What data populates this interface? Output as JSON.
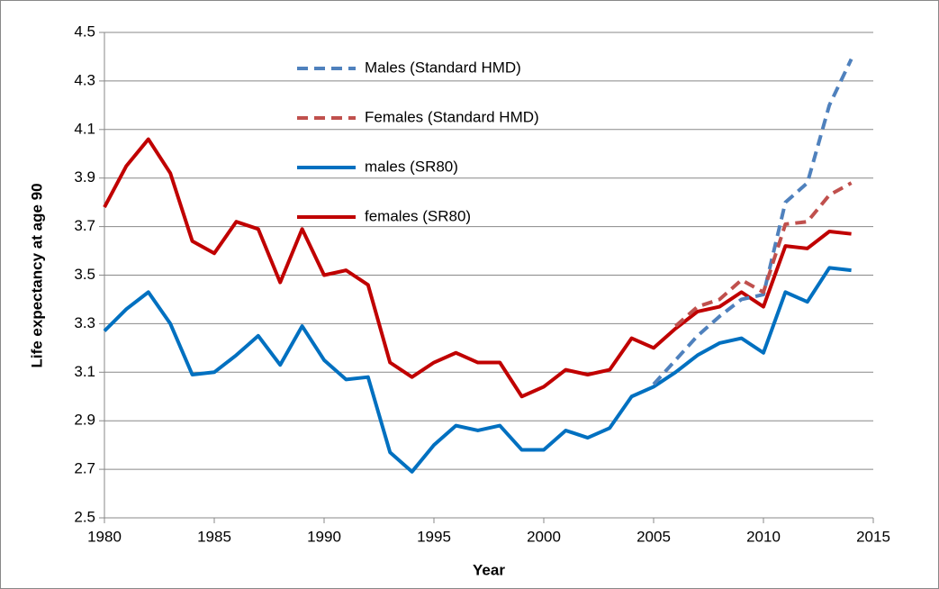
{
  "chart_data": {
    "type": "line",
    "x_label": "Year",
    "y_label": "Life expectancy at age 90",
    "x": [
      1980,
      1981,
      1982,
      1983,
      1984,
      1985,
      1986,
      1987,
      1988,
      1989,
      1990,
      1991,
      1992,
      1993,
      1994,
      1995,
      1996,
      1997,
      1998,
      1999,
      2000,
      2001,
      2002,
      2003,
      2004,
      2005,
      2006,
      2007,
      2008,
      2009,
      2010,
      2011,
      2012,
      2013,
      2014
    ],
    "series": [
      {
        "name": "Males (Standard HMD)",
        "color": "#4f81bd",
        "dashed": true,
        "values": [
          null,
          null,
          null,
          null,
          null,
          null,
          null,
          null,
          null,
          null,
          null,
          null,
          null,
          null,
          null,
          null,
          null,
          null,
          null,
          null,
          null,
          null,
          null,
          null,
          null,
          3.05,
          3.15,
          3.25,
          3.33,
          3.4,
          3.42,
          3.8,
          3.88,
          4.2,
          4.39
        ]
      },
      {
        "name": "Females (Standard HMD)",
        "color": "#c0504d",
        "dashed": true,
        "values": [
          null,
          null,
          null,
          null,
          null,
          null,
          null,
          null,
          null,
          null,
          null,
          null,
          null,
          null,
          null,
          null,
          null,
          null,
          null,
          null,
          null,
          null,
          null,
          null,
          null,
          null,
          3.29,
          3.37,
          3.4,
          3.48,
          3.43,
          3.71,
          3.72,
          3.83,
          3.88
        ]
      },
      {
        "name": "males (SR80)",
        "color": "#0070c0",
        "dashed": false,
        "values": [
          3.27,
          3.36,
          3.43,
          3.3,
          3.09,
          3.1,
          3.17,
          3.25,
          3.13,
          3.29,
          3.15,
          3.07,
          3.08,
          2.77,
          2.69,
          2.8,
          2.88,
          2.86,
          2.88,
          2.78,
          2.78,
          2.86,
          2.83,
          2.87,
          3.0,
          3.04,
          3.1,
          3.17,
          3.22,
          3.24,
          3.18,
          3.43,
          3.39,
          3.53,
          3.52
        ]
      },
      {
        "name": "females (SR80)",
        "color": "#c00000",
        "dashed": false,
        "values": [
          3.78,
          3.95,
          4.06,
          3.92,
          3.64,
          3.59,
          3.72,
          3.69,
          3.47,
          3.69,
          3.5,
          3.52,
          3.46,
          3.14,
          3.08,
          3.14,
          3.18,
          3.14,
          3.14,
          3.0,
          3.04,
          3.11,
          3.09,
          3.11,
          3.24,
          3.2,
          3.28,
          3.35,
          3.37,
          3.43,
          3.37,
          3.62,
          3.61,
          3.68,
          3.67
        ]
      }
    ],
    "xlim": [
      1980,
      2015
    ],
    "xticks": [
      1980,
      1985,
      1990,
      1995,
      2000,
      2005,
      2010,
      2015
    ],
    "ylim": [
      2.5,
      4.5
    ],
    "yticks": [
      2.5,
      2.7,
      2.9,
      3.1,
      3.3,
      3.5,
      3.7,
      3.9,
      4.1,
      4.3,
      4.5
    ],
    "grid": true,
    "legend": "top-center"
  }
}
